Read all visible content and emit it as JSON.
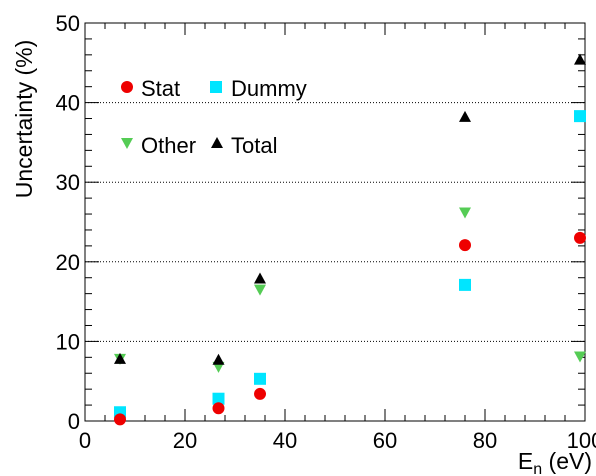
{
  "chart_data": {
    "type": "scatter",
    "title": "",
    "xlabel": "E",
    "xlabel_subscript": "n",
    "xlabel_unit": "(eV)",
    "ylabel": "Uncertainty (%)",
    "xlim": [
      0,
      100
    ],
    "ylim": [
      0,
      50
    ],
    "xticks": [
      0,
      20,
      40,
      60,
      80,
      100
    ],
    "yticks": [
      0,
      10,
      20,
      30,
      40,
      50
    ],
    "grid": "horizontal dotted at 10, 20, 30, 40",
    "legend_position": "top-left",
    "series": [
      {
        "name": "Stat",
        "marker": "circle",
        "color": "#ee0000",
        "x": [
          7,
          26.7,
          35,
          76,
          99
        ],
        "y": [
          0.2,
          1.6,
          3.4,
          22.1,
          23.0
        ]
      },
      {
        "name": "Dummy",
        "marker": "square",
        "color": "#00e5ff",
        "x": [
          7,
          26.7,
          35,
          76,
          99
        ],
        "y": [
          1.1,
          2.8,
          5.3,
          17.1,
          38.3
        ]
      },
      {
        "name": "Other",
        "marker": "triangle-down",
        "color": "#55cc55",
        "x": [
          7,
          26.7,
          35,
          76,
          99
        ],
        "y": [
          7.8,
          6.8,
          16.5,
          26.2,
          8.1
        ]
      },
      {
        "name": "Total",
        "marker": "triangle-up",
        "color": "#000000",
        "x": [
          7,
          26.7,
          35,
          76,
          99
        ],
        "y": [
          7.8,
          7.7,
          17.9,
          38.2,
          45.4
        ]
      }
    ]
  }
}
